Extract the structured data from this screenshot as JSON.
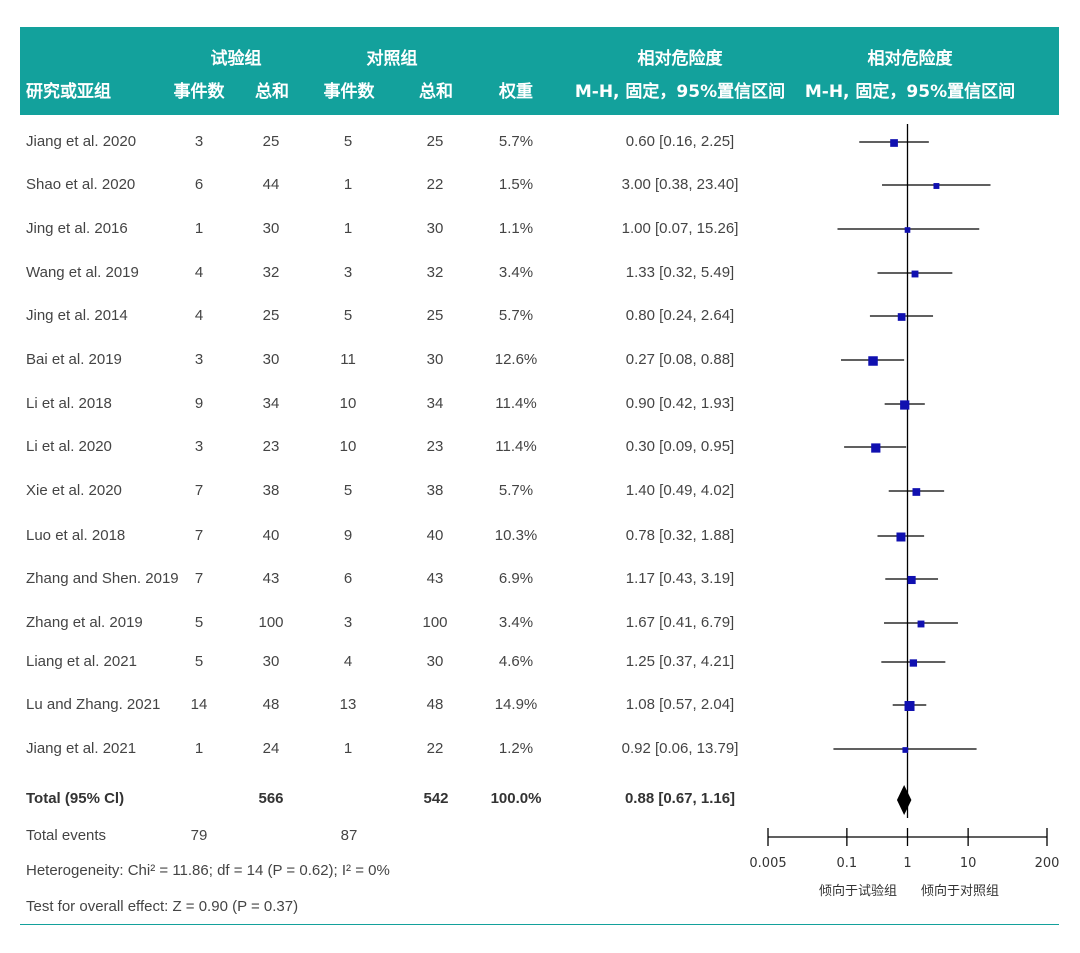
{
  "header": {
    "group_exp": "试验组",
    "group_ctrl": "对照组",
    "rr_title_1": "相对危险度",
    "rr_title_2": "相对危险度",
    "col_study": "研究或亚组",
    "col_exp_events": "事件数",
    "col_exp_total": "总和",
    "col_ctrl_events": "事件数",
    "col_ctrl_total": "总和",
    "col_weight": "权重",
    "col_method_1": "M-H, 固定，95%置信区间",
    "col_method_2": "M-H, 固定，95%置信区间"
  },
  "studies": [
    {
      "name": "Jiang et al. 2020",
      "exp_events": "3",
      "exp_total": "25",
      "ctrl_events": "5",
      "ctrl_total": "25",
      "weight": "5.7%",
      "ci_text": "0.60 [0.16, 2.25]"
    },
    {
      "name": "Shao et al. 2020",
      "exp_events": "6",
      "exp_total": "44",
      "ctrl_events": "1",
      "ctrl_total": "22",
      "weight": "1.5%",
      "ci_text": "3.00 [0.38, 23.40]"
    },
    {
      "name": "Jing et al. 2016",
      "exp_events": "1",
      "exp_total": "30",
      "ctrl_events": "1",
      "ctrl_total": "30",
      "weight": "1.1%",
      "ci_text": "1.00 [0.07, 15.26]"
    },
    {
      "name": "Wang et al. 2019",
      "exp_events": "4",
      "exp_total": "32",
      "ctrl_events": "3",
      "ctrl_total": "32",
      "weight": "3.4%",
      "ci_text": "1.33 [0.32, 5.49]"
    },
    {
      "name": "Jing et al. 2014",
      "exp_events": "4",
      "exp_total": "25",
      "ctrl_events": "5",
      "ctrl_total": "25",
      "weight": "5.7%",
      "ci_text": "0.80 [0.24, 2.64]"
    },
    {
      "name": "Bai et al. 2019",
      "exp_events": "3",
      "exp_total": "30",
      "ctrl_events": "11",
      "ctrl_total": "30",
      "weight": "12.6%",
      "ci_text": "0.27 [0.08, 0.88]"
    },
    {
      "name": "Li et al. 2018",
      "exp_events": "9",
      "exp_total": "34",
      "ctrl_events": "10",
      "ctrl_total": "34",
      "weight": "11.4%",
      "ci_text": "0.90 [0.42, 1.93]"
    },
    {
      "name": "Li et al. 2020",
      "exp_events": "3",
      "exp_total": "23",
      "ctrl_events": "10",
      "ctrl_total": "23",
      "weight": "11.4%",
      "ci_text": "0.30 [0.09, 0.95]"
    },
    {
      "name": "Xie et al. 2020",
      "exp_events": "7",
      "exp_total": "38",
      "ctrl_events": "5",
      "ctrl_total": "38",
      "weight": "5.7%",
      "ci_text": "1.40 [0.49, 4.02]"
    },
    {
      "name": "Luo et al. 2018",
      "exp_events": "7",
      "exp_total": "40",
      "ctrl_events": "9",
      "ctrl_total": "40",
      "weight": "10.3%",
      "ci_text": "0.78 [0.32, 1.88]"
    },
    {
      "name": "Zhang and Shen. 2019",
      "exp_events": "7",
      "exp_total": "43",
      "ctrl_events": "6",
      "ctrl_total": "43",
      "weight": "6.9%",
      "ci_text": "1.17 [0.43, 3.19]"
    },
    {
      "name": "Zhang et al. 2019",
      "exp_events": "5",
      "exp_total": "100",
      "ctrl_events": "3",
      "ctrl_total": "100",
      "weight": "3.4%",
      "ci_text": "1.67 [0.41, 6.79]"
    },
    {
      "name": "Liang et al. 2021",
      "exp_events": "5",
      "exp_total": "30",
      "ctrl_events": "4",
      "ctrl_total": "30",
      "weight": "4.6%",
      "ci_text": "1.25 [0.37, 4.21]"
    },
    {
      "name": "Lu and Zhang. 2021",
      "exp_events": "14",
      "exp_total": "48",
      "ctrl_events": "13",
      "ctrl_total": "48",
      "weight": "14.9%",
      "ci_text": "1.08 [0.57, 2.04]"
    },
    {
      "name": "Jiang et al. 2021",
      "exp_events": "1",
      "exp_total": "24",
      "ctrl_events": "1",
      "ctrl_total": "22",
      "weight": "1.2%",
      "ci_text": "0.92 [0.06, 13.79]"
    }
  ],
  "total": {
    "label": "Total (95% Cl)",
    "exp_total": "566",
    "ctrl_total": "542",
    "weight": "100.0%",
    "ci_text": "0.88 [0.67, 1.16]"
  },
  "total_events": {
    "label": "Total events",
    "exp": "79",
    "ctrl": "87"
  },
  "heterogeneity": "Heterogeneity:  Chi² = 11.86;  df = 14 (P = 0.62); I² = 0%",
  "overall_effect": "Test for overall effect: Z = 0.90 (P = 0.37)",
  "colors": {
    "header_bg": "#13a19c",
    "marker": "#1010b0",
    "line": "#000000"
  },
  "chart_data": {
    "type": "forest",
    "scale": "log",
    "xlim": [
      0.005,
      200
    ],
    "ticks": [
      0.005,
      0.1,
      1,
      10,
      200
    ],
    "tick_labels": [
      "0.005",
      "0.1",
      "1",
      "10",
      "200"
    ],
    "favours_left": "倾向于试验组",
    "favours_right": "倾向于对照组",
    "points": [
      {
        "rr": 0.6,
        "lo": 0.16,
        "hi": 2.25,
        "weight": 5.7
      },
      {
        "rr": 3.0,
        "lo": 0.38,
        "hi": 23.4,
        "weight": 1.5
      },
      {
        "rr": 1.0,
        "lo": 0.07,
        "hi": 15.26,
        "weight": 1.1
      },
      {
        "rr": 1.33,
        "lo": 0.32,
        "hi": 5.49,
        "weight": 3.4
      },
      {
        "rr": 0.8,
        "lo": 0.24,
        "hi": 2.64,
        "weight": 5.7
      },
      {
        "rr": 0.27,
        "lo": 0.08,
        "hi": 0.88,
        "weight": 12.6
      },
      {
        "rr": 0.9,
        "lo": 0.42,
        "hi": 1.93,
        "weight": 11.4
      },
      {
        "rr": 0.3,
        "lo": 0.09,
        "hi": 0.95,
        "weight": 11.4
      },
      {
        "rr": 1.4,
        "lo": 0.49,
        "hi": 4.02,
        "weight": 5.7
      },
      {
        "rr": 0.78,
        "lo": 0.32,
        "hi": 1.88,
        "weight": 10.3
      },
      {
        "rr": 1.17,
        "lo": 0.43,
        "hi": 3.19,
        "weight": 6.9
      },
      {
        "rr": 1.67,
        "lo": 0.41,
        "hi": 6.79,
        "weight": 3.4
      },
      {
        "rr": 1.25,
        "lo": 0.37,
        "hi": 4.21,
        "weight": 4.6
      },
      {
        "rr": 1.08,
        "lo": 0.57,
        "hi": 2.04,
        "weight": 14.9
      },
      {
        "rr": 0.92,
        "lo": 0.06,
        "hi": 13.79,
        "weight": 1.2
      }
    ],
    "pooled": {
      "rr": 0.88,
      "lo": 0.67,
      "hi": 1.16
    }
  }
}
